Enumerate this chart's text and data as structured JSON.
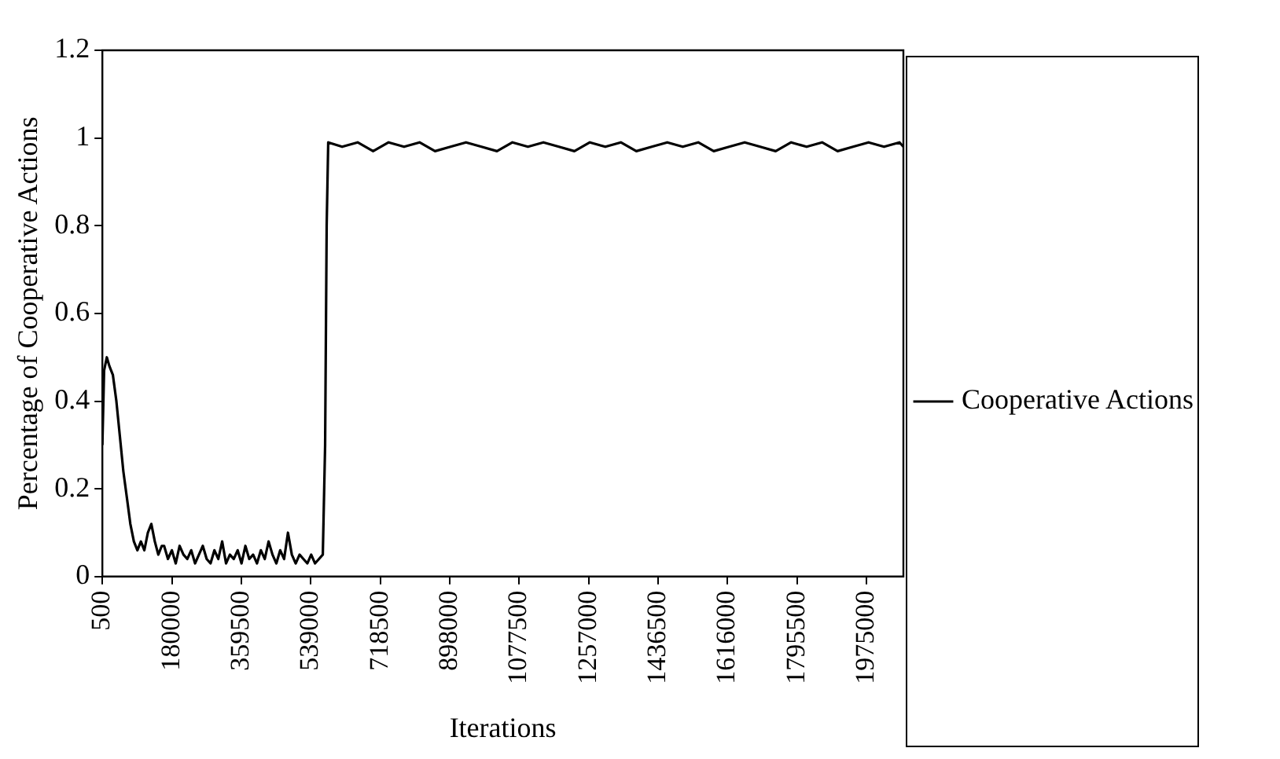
{
  "chart_data": {
    "type": "line",
    "xlabel": "Iterations",
    "ylabel": "Percentage of Cooperative Actions",
    "xlim": [
      500,
      2070000
    ],
    "xticks": [
      500,
      180000,
      359500,
      539000,
      718500,
      898000,
      1077500,
      1257000,
      1436500,
      1616000,
      1795500,
      1975000
    ],
    "ylim": [
      0,
      1.2
    ],
    "yticks": [
      0,
      0.2,
      0.4,
      0.6,
      0.8,
      1,
      1.2
    ],
    "grid": false,
    "legend": "right",
    "marker": "none",
    "line_style": "solid",
    "series": [
      {
        "name": "Cooperative Actions",
        "color": "#000000",
        "x": [
          500,
          5000,
          12000,
          18600,
          27600,
          36700,
          45700,
          54700,
          63800,
          72800,
          81900,
          91000,
          100000,
          109000,
          118000,
          127000,
          136000,
          145000,
          154000,
          160000,
          170000,
          180000,
          190000,
          200000,
          210000,
          220000,
          230000,
          240000,
          250000,
          260000,
          270000,
          280000,
          290000,
          300000,
          310000,
          320000,
          330000,
          340000,
          350000,
          360000,
          370000,
          380000,
          390000,
          400000,
          410000,
          420000,
          430000,
          440000,
          450000,
          460000,
          470000,
          480000,
          490000,
          500000,
          510000,
          520000,
          530000,
          540000,
          550000,
          560000,
          570000,
          576000,
          580000,
          584000,
          620000,
          660000,
          700000,
          740000,
          780000,
          820000,
          860000,
          900000,
          940000,
          980000,
          1020000,
          1060000,
          1100000,
          1140000,
          1180000,
          1220000,
          1260000,
          1300000,
          1340000,
          1380000,
          1420000,
          1460000,
          1500000,
          1540000,
          1580000,
          1620000,
          1660000,
          1700000,
          1740000,
          1780000,
          1820000,
          1860000,
          1900000,
          1940000,
          1980000,
          2020000,
          2060000,
          2070000
        ],
        "values": [
          0.3,
          0.47,
          0.5,
          0.48,
          0.46,
          0.4,
          0.32,
          0.24,
          0.18,
          0.12,
          0.08,
          0.06,
          0.08,
          0.06,
          0.1,
          0.12,
          0.08,
          0.05,
          0.07,
          0.07,
          0.04,
          0.06,
          0.03,
          0.07,
          0.05,
          0.04,
          0.06,
          0.03,
          0.05,
          0.07,
          0.04,
          0.03,
          0.06,
          0.04,
          0.08,
          0.03,
          0.05,
          0.04,
          0.06,
          0.03,
          0.07,
          0.04,
          0.05,
          0.03,
          0.06,
          0.04,
          0.08,
          0.05,
          0.03,
          0.06,
          0.04,
          0.1,
          0.05,
          0.03,
          0.05,
          0.04,
          0.03,
          0.05,
          0.03,
          0.04,
          0.05,
          0.3,
          0.8,
          0.99,
          0.98,
          0.99,
          0.97,
          0.99,
          0.98,
          0.99,
          0.97,
          0.98,
          0.99,
          0.98,
          0.97,
          0.99,
          0.98,
          0.99,
          0.98,
          0.97,
          0.99,
          0.98,
          0.99,
          0.97,
          0.98,
          0.99,
          0.98,
          0.99,
          0.97,
          0.98,
          0.99,
          0.98,
          0.97,
          0.99,
          0.98,
          0.99,
          0.97,
          0.98,
          0.99,
          0.98,
          0.99,
          0.98
        ]
      }
    ]
  }
}
